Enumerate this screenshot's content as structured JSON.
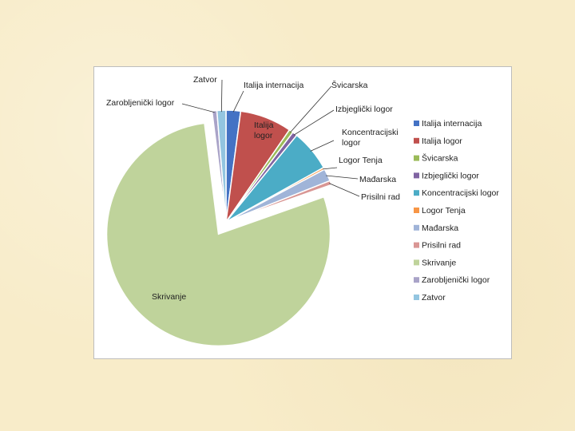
{
  "chart_data": {
    "type": "pie",
    "title": "",
    "categories": [
      "Italija internacija",
      "Italija logor",
      "Švicarska",
      "Izbjeglički logor",
      "Koncentracijski logor",
      "Logor Tenja",
      "Mađarska",
      "Prisilni rad",
      "Skrivanje",
      "Zarobljenički logor",
      "Zatvor"
    ],
    "values": [
      2.1,
      7.5,
      0.6,
      0.7,
      6.0,
      0.3,
      1.8,
      0.6,
      78.4,
      0.7,
      1.3
    ],
    "colors": [
      "#4472c4",
      "#c0504d",
      "#9bbb59",
      "#8064a2",
      "#4bacc6",
      "#f79646",
      "#a0b4d8",
      "#d99694",
      "#bfd39b",
      "#a9a3c8",
      "#93c5e0"
    ],
    "exploded": [
      "Skrivanje"
    ],
    "legend_position": "right",
    "data_labels": [
      "Italija internacija",
      "Italija\nlogor",
      "Švicarska",
      "Izbjeglički logor",
      "Koncentracijski\nlogor",
      "Logor Tenja",
      "Mađarska",
      "Prisilni rad",
      "Skrivanje",
      "Zarobljenički logor",
      "Zatvor"
    ]
  }
}
